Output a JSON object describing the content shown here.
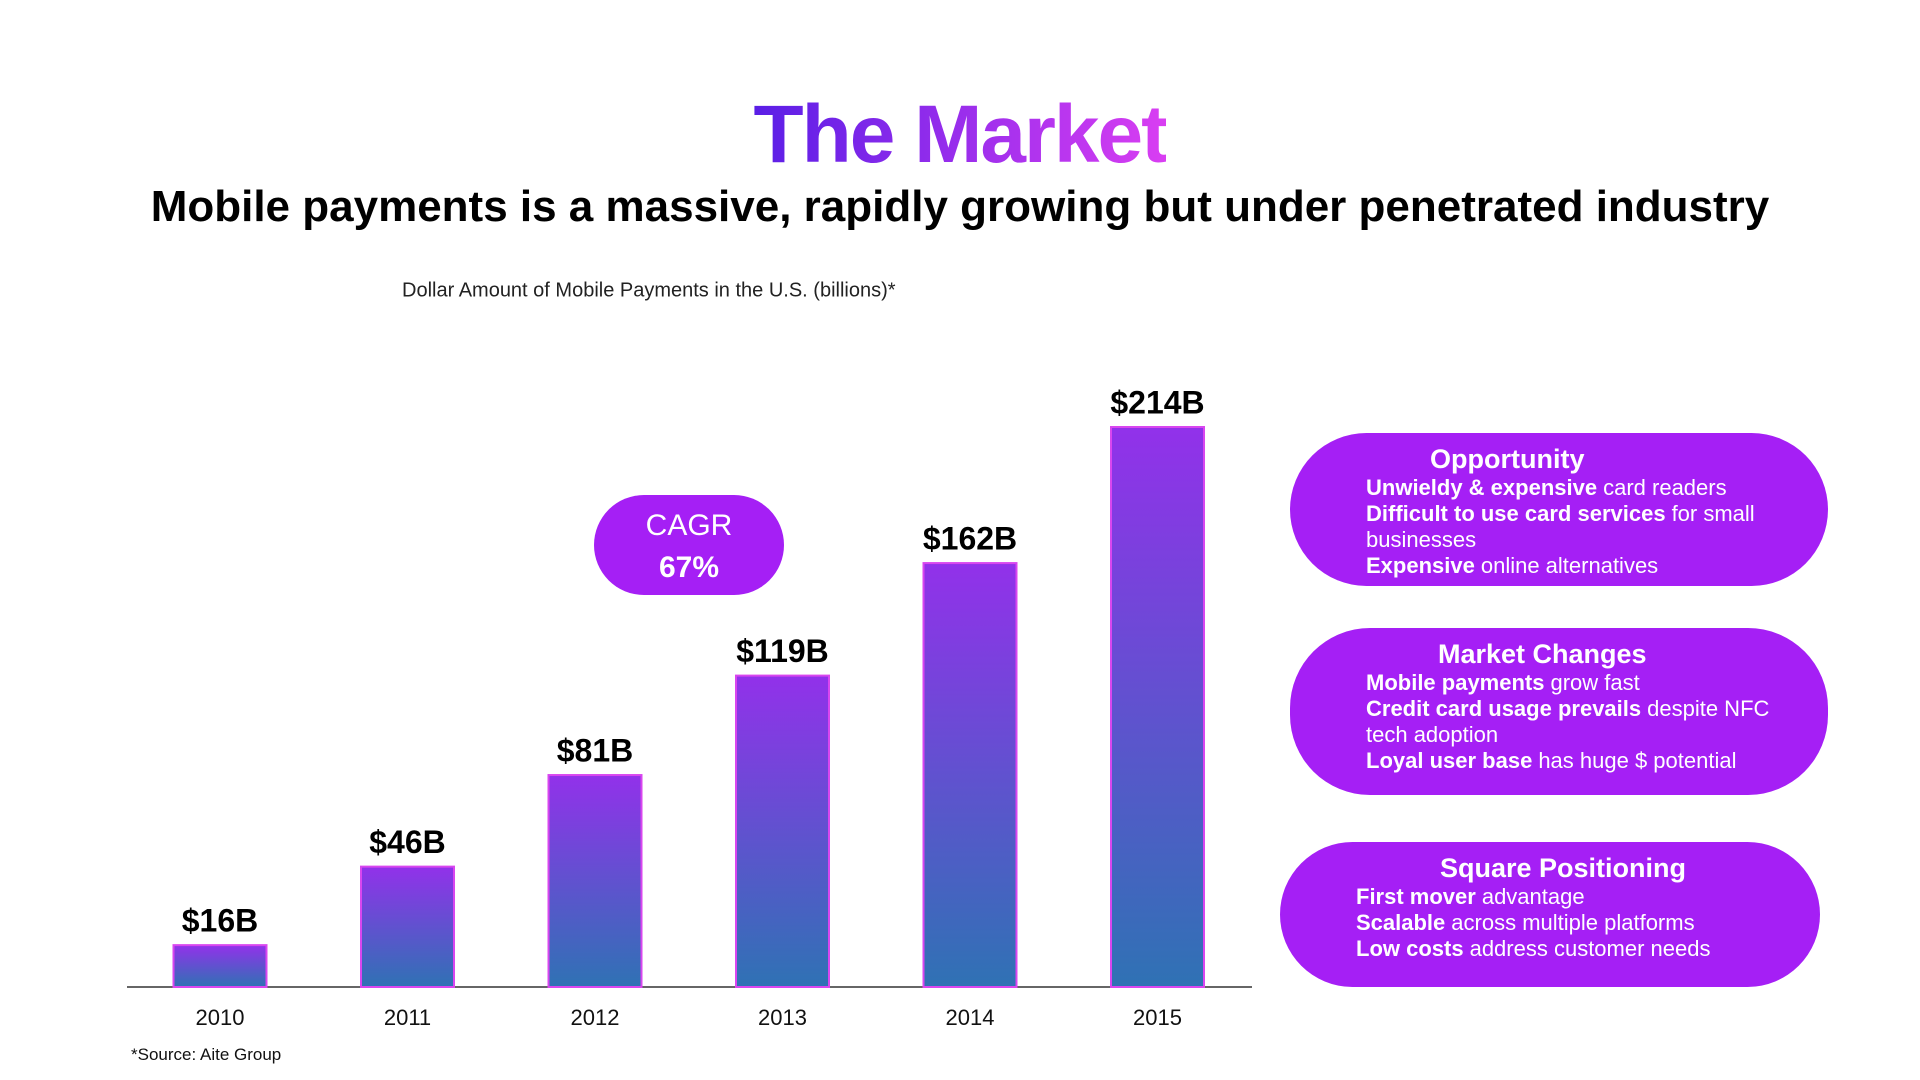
{
  "title": "The Market",
  "subtitle": "Mobile payments is a massive, rapidly growing but under penetrated industry",
  "chart_data": {
    "type": "bar",
    "title": "Dollar Amount of Mobile Payments in the U.S. (billions)*",
    "categories": [
      "2010",
      "2011",
      "2012",
      "2013",
      "2014",
      "2015"
    ],
    "values": [
      16,
      46,
      81,
      119,
      162,
      214
    ],
    "value_labels": [
      "$16B",
      "$46B",
      "$81B",
      "$119B",
      "$162B",
      "$214B"
    ],
    "color": "#d946ef",
    "annotations": [
      "CAGR",
      "67%"
    ]
  },
  "source": "*Source: Aite Group",
  "panels": [
    {
      "title": "Opportunity",
      "items": [
        {
          "bold": "Unwieldy & expensive",
          "text": "card readers"
        },
        {
          "bold": "Difficult to use card services",
          "text": "for small businesses"
        },
        {
          "bold": "Expensive",
          "text": "online alternatives"
        }
      ]
    },
    {
      "title": "Market Changes",
      "items": [
        {
          "bold": "Mobile payments",
          "text": "grow fast"
        },
        {
          "bold": "Credit card usage prevails",
          "text": "despite NFC tech adoption"
        },
        {
          "bold": "Loyal user base",
          "text": "has huge $ potential"
        }
      ]
    },
    {
      "title": "Square Positioning",
      "items": [
        {
          "bold": "First mover",
          "text": "advantage"
        },
        {
          "bold": "Scalable",
          "text": "across multiple platforms"
        },
        {
          "bold": "Low costs",
          "text": "address customer needs"
        }
      ]
    }
  ]
}
